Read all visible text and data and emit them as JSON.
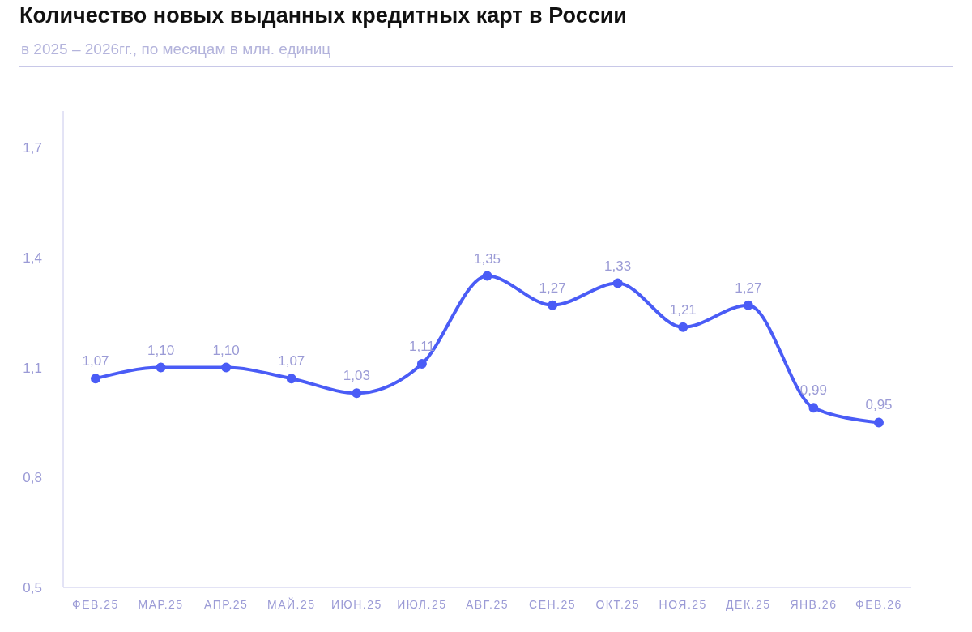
{
  "chart_data": {
    "type": "line",
    "title": "Количество новых выданных кредитных карт в России",
    "subtitle": "в 2025 – 2026гг., по месяцам в млн. единиц",
    "categories": [
      "ФЕВ.25",
      "МАР.25",
      "АПР.25",
      "МАЙ.25",
      "ИЮН.25",
      "ИЮЛ.25",
      "АВГ.25",
      "СЕН.25",
      "ОКТ.25",
      "НОЯ.25",
      "ДЕК.25",
      "ЯНВ.26",
      "ФЕВ.26"
    ],
    "series": [
      {
        "color": "#4a5cf6",
        "values": [
          1.07,
          1.1,
          1.1,
          1.07,
          1.03,
          1.11,
          1.35,
          1.27,
          1.33,
          1.21,
          1.27,
          0.99,
          0.95
        ],
        "value_labels": [
          "1,07",
          "1,10",
          "1,10",
          "1,07",
          "1,03",
          "1,11",
          "1,35",
          "1,27",
          "1,33",
          "1,21",
          "1,27",
          "0,99",
          "0,95"
        ]
      }
    ],
    "ylim": [
      0.5,
      1.8
    ],
    "yticks": [
      {
        "value": 0.5,
        "label": "0,5"
      },
      {
        "value": 0.8,
        "label": "0,8"
      },
      {
        "value": 1.1,
        "label": "1,1"
      },
      {
        "value": 1.4,
        "label": "1,4"
      },
      {
        "value": 1.7,
        "label": "1,7"
      }
    ],
    "grid": false,
    "legend": false,
    "marker": "circle",
    "line_style": "solid"
  }
}
